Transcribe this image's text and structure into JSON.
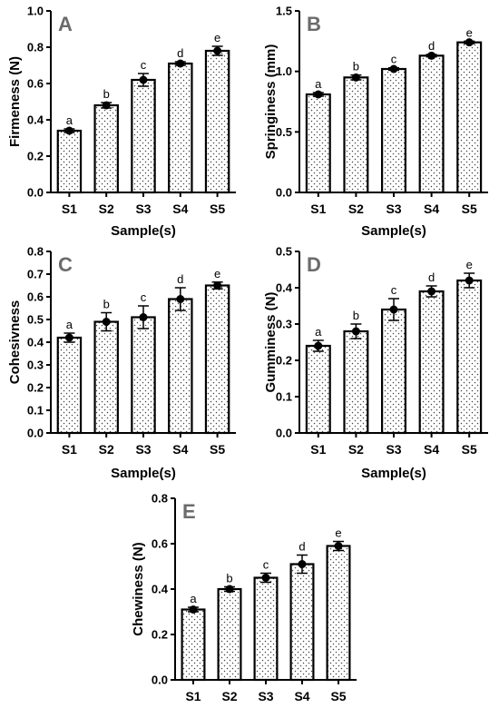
{
  "chart_data": [
    {
      "type": "bar",
      "panel_label": "A",
      "categories": [
        "S1",
        "S2",
        "S3",
        "S4",
        "S5"
      ],
      "values": [
        0.34,
        0.48,
        0.62,
        0.71,
        0.78
      ],
      "errors": [
        0.01,
        0.015,
        0.035,
        0.01,
        0.025
      ],
      "significance": [
        "a",
        "b",
        "c",
        "d",
        "e"
      ],
      "xlabel": "Sample(s)",
      "ylabel": "Firmeness (N)",
      "ylim": [
        0,
        1.0
      ],
      "yticks": [
        "0.0",
        "0.2",
        "0.4",
        "0.6",
        "0.8",
        "1.0"
      ]
    },
    {
      "type": "bar",
      "panel_label": "B",
      "categories": [
        "S1",
        "S2",
        "S3",
        "S4",
        "S5"
      ],
      "values": [
        0.81,
        0.95,
        1.02,
        1.13,
        1.24
      ],
      "errors": [
        0.015,
        0.02,
        0.01,
        0.01,
        0.01
      ],
      "significance": [
        "a",
        "b",
        "c",
        "d",
        "e"
      ],
      "xlabel": "Sample(s)",
      "ylabel": "Springiness (mm)",
      "ylim": [
        0,
        1.5
      ],
      "yticks": [
        "0.0",
        "0.5",
        "1.0",
        "1.5"
      ]
    },
    {
      "type": "bar",
      "panel_label": "C",
      "categories": [
        "S1",
        "S2",
        "S3",
        "S4",
        "S5"
      ],
      "values": [
        0.42,
        0.49,
        0.51,
        0.59,
        0.65
      ],
      "errors": [
        0.02,
        0.04,
        0.05,
        0.05,
        0.015
      ],
      "significance": [
        "a",
        "b",
        "c",
        "d",
        "e"
      ],
      "xlabel": "Sample(s)",
      "ylabel": "Cohesivness",
      "ylim": [
        0,
        0.8
      ],
      "yticks": [
        "0.0",
        "0.1",
        "0.2",
        "0.3",
        "0.4",
        "0.5",
        "0.6",
        "0.7",
        "0.8"
      ]
    },
    {
      "type": "bar",
      "panel_label": "D",
      "categories": [
        "S1",
        "S2",
        "S3",
        "S4",
        "S5"
      ],
      "values": [
        0.24,
        0.28,
        0.34,
        0.39,
        0.42
      ],
      "errors": [
        0.015,
        0.02,
        0.03,
        0.015,
        0.02
      ],
      "significance": [
        "a",
        "b",
        "c",
        "d",
        "e"
      ],
      "xlabel": "Sample(s)",
      "ylabel": "Gumminess (N)",
      "ylim": [
        0,
        0.5
      ],
      "yticks": [
        "0.0",
        "0.1",
        "0.2",
        "0.3",
        "0.4",
        "0.5"
      ]
    },
    {
      "type": "bar",
      "panel_label": "E",
      "categories": [
        "S1",
        "S2",
        "S3",
        "S4",
        "S5"
      ],
      "values": [
        0.31,
        0.4,
        0.45,
        0.51,
        0.59
      ],
      "errors": [
        0.01,
        0.01,
        0.02,
        0.04,
        0.02
      ],
      "significance": [
        "a",
        "b",
        "c",
        "d",
        "e"
      ],
      "xlabel": "",
      "ylabel": "Chewiness (N)",
      "ylim": [
        0,
        0.8
      ],
      "yticks": [
        "0.0",
        "0.2",
        "0.4",
        "0.6",
        "0.8"
      ]
    }
  ]
}
